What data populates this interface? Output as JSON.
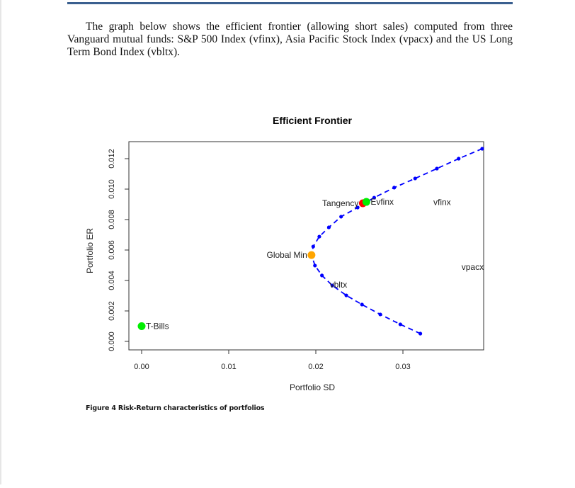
{
  "document": {
    "intro_text": "The graph below shows the efficient frontier (allowing short sales) computed from three Vanguard mutual funds: S&P 500 Index (vfinx), Asia Pacific Stock Index (vpacx) and the US Long Term Bond Index (vbltx).",
    "caption": "Figure 4 Risk-Return characteristics of portfolios",
    "rule_color": "#3a5f8f"
  },
  "chart_data": {
    "type": "scatter",
    "title": "Efficient Frontier",
    "xlabel": "Portfolio SD",
    "ylabel": "Portfolio ER",
    "xlim": [
      -0.0015,
      0.0392
    ],
    "ylim": [
      -0.0005,
      0.0131
    ],
    "x_ticks": [
      0.0,
      0.01,
      0.02,
      0.03
    ],
    "x_tick_labels": [
      "0.00",
      "0.01",
      "0.02",
      "0.03"
    ],
    "y_ticks": [
      0.0,
      0.002,
      0.004,
      0.006,
      0.008,
      0.01,
      0.012
    ],
    "y_tick_labels": [
      "0.000",
      "0.002",
      "0.004",
      "0.006",
      "0.008",
      "0.010",
      "0.012"
    ],
    "grid": false,
    "series": [
      {
        "name": "Efficient frontier",
        "color": "#0000ff",
        "style": "dashed line with points",
        "points": [
          {
            "sd": 0.0391,
            "er": 0.01265
          },
          {
            "sd": 0.0364,
            "er": 0.012
          },
          {
            "sd": 0.0339,
            "er": 0.01135
          },
          {
            "sd": 0.0314,
            "er": 0.0107
          },
          {
            "sd": 0.029,
            "er": 0.0101
          },
          {
            "sd": 0.0267,
            "er": 0.00944
          },
          {
            "sd": 0.0248,
            "er": 0.00879
          },
          {
            "sd": 0.0229,
            "er": 0.00819
          },
          {
            "sd": 0.0215,
            "er": 0.00749
          },
          {
            "sd": 0.0204,
            "er": 0.00688
          },
          {
            "sd": 0.0197,
            "er": 0.00623
          },
          {
            "sd": 0.0195,
            "er": 0.00567
          },
          {
            "sd": 0.0199,
            "er": 0.00498
          },
          {
            "sd": 0.0207,
            "er": 0.00433
          },
          {
            "sd": 0.0219,
            "er": 0.00367
          },
          {
            "sd": 0.0235,
            "er": 0.00302
          },
          {
            "sd": 0.0253,
            "er": 0.00242
          },
          {
            "sd": 0.0274,
            "er": 0.00177
          },
          {
            "sd": 0.0297,
            "er": 0.00112
          },
          {
            "sd": 0.032,
            "er": 0.00051
          }
        ]
      }
    ],
    "highlighted_points": [
      {
        "label": "T-Bills",
        "sd": 0.0,
        "er": 0.001,
        "color": "#00ee00",
        "label_side": "right"
      },
      {
        "label": "Global Min",
        "sd": 0.0195,
        "er": 0.00567,
        "color": "#ffa500",
        "label_side": "left"
      },
      {
        "label": "Tangency",
        "sd": 0.0254,
        "er": 0.00907,
        "color": "#ff0000",
        "label_side": "left"
      },
      {
        "label": "Evfinx",
        "sd": 0.0258,
        "er": 0.00916,
        "color": "#00ee00",
        "label_side": "right"
      }
    ],
    "annotations": [
      {
        "text": "vfinx",
        "sd": 0.0345,
        "er": 0.00915
      },
      {
        "text": "vpacx",
        "sd": 0.038,
        "er": 0.00488
      },
      {
        "text": "vbltx",
        "sd": 0.0226,
        "er": 0.00372
      }
    ]
  }
}
